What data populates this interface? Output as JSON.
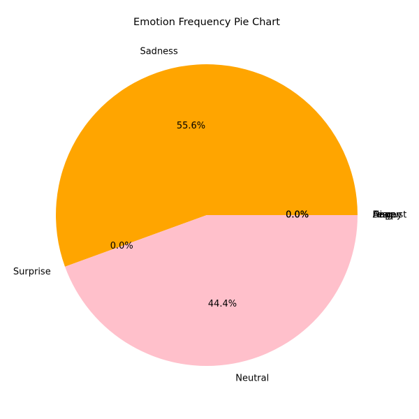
{
  "chart_data": {
    "type": "pie",
    "title": "Emotion Frequency Pie Chart",
    "start_angle_deg": 0,
    "direction": "counterclockwise",
    "slices": [
      {
        "label": "Sadness",
        "value": 5,
        "percent_label": "55.6%",
        "color": "#FFA500"
      },
      {
        "label": "Surprise",
        "value": 0,
        "percent_label": "0.0%",
        "color": "#800080"
      },
      {
        "label": "Neutral",
        "value": 4,
        "percent_label": "44.4%",
        "color": "#FFC0CB"
      },
      {
        "label": "Happy",
        "value": 0,
        "percent_label": "0.0%",
        "color": "#008000"
      },
      {
        "label": "Anger",
        "value": 0,
        "percent_label": "0.0%",
        "color": "#FF0000"
      },
      {
        "label": "Fear",
        "value": 0,
        "percent_label": "0.0%",
        "color": "#000000"
      },
      {
        "label": "Disgust",
        "value": 0,
        "percent_label": "0.0%",
        "color": "#808080"
      }
    ]
  }
}
